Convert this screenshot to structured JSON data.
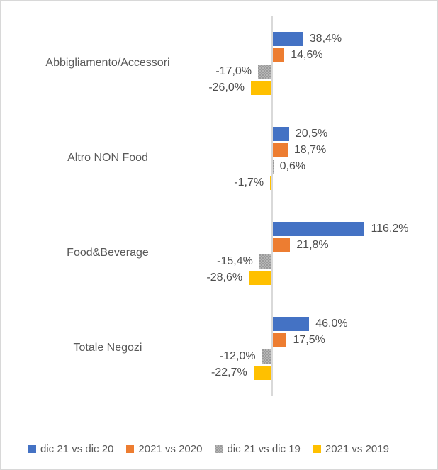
{
  "chart_data": {
    "type": "bar",
    "orientation": "horizontal",
    "title": "",
    "xlabel": "",
    "ylabel": "",
    "grid": false,
    "legend_position": "bottom",
    "xlim": [
      -40,
      130
    ],
    "value_format": "italian-percent",
    "categories": [
      "Abbigliamento/Accessori",
      "Altro NON Food",
      "Food&Beverage",
      "Totale Negozi"
    ],
    "series": [
      {
        "name": "dic 21 vs dic 20",
        "color": "#4472C4",
        "pattern": "solid",
        "values": [
          38.4,
          20.5,
          116.2,
          46.0
        ],
        "labels": [
          "38,4%",
          "20,5%",
          "116,2%",
          "46,0%"
        ]
      },
      {
        "name": "2021 vs 2020",
        "color": "#ED7D31",
        "pattern": "solid",
        "values": [
          14.6,
          18.7,
          21.8,
          17.5
        ],
        "labels": [
          "14,6%",
          "18,7%",
          "21,8%",
          "17,5%"
        ]
      },
      {
        "name": "dic 21 vs dic 19",
        "color": "#A5A5A5",
        "pattern": "checker",
        "values": [
          -17.0,
          0.6,
          -15.4,
          -12.0
        ],
        "labels": [
          "-17,0%",
          "0,6%",
          "-15,4%",
          "-12,0%"
        ]
      },
      {
        "name": "2021 vs 2019",
        "color": "#FFC000",
        "pattern": "solid",
        "values": [
          -26.0,
          -1.7,
          -28.6,
          -22.7
        ],
        "labels": [
          "-26,0%",
          "-1,7%",
          "-28,6%",
          "-22,7%"
        ]
      }
    ]
  },
  "colors": {
    "axis_line": "#d9d9d9",
    "frame_border": "#d8d8d8",
    "value_label_text": "#4d4d4d",
    "category_label_text": "#595959",
    "legend_text": "#595959"
  }
}
